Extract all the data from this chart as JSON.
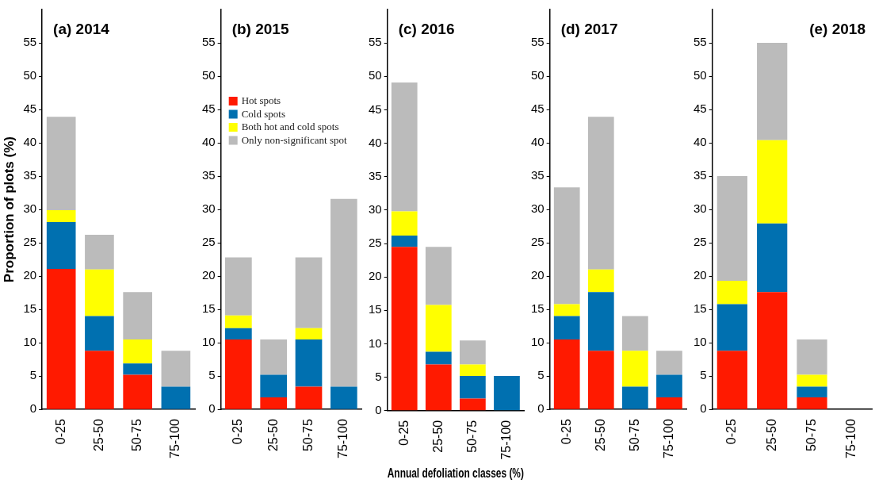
{
  "chart_data": [
    {
      "type": "bar",
      "title": "(a) 2014",
      "ylabel": "Proportion of plots (%)",
      "categories": [
        "0-25",
        "25-50",
        "50-75",
        "75-100"
      ],
      "stacked": true,
      "ylim": [
        0,
        60
      ],
      "yticks": [
        0,
        5,
        10,
        15,
        20,
        25,
        30,
        35,
        40,
        45,
        50,
        55
      ],
      "series": [
        {
          "color": "#ff1a00",
          "values": [
            21.1,
            8.8,
            5.2,
            0
          ]
        },
        {
          "color": "#0070b0",
          "values": [
            7.0,
            5.2,
            1.7,
            3.4
          ]
        },
        {
          "color": "#ffff00",
          "values": [
            1.8,
            7.0,
            3.6,
            0
          ]
        },
        {
          "color": "#bbbbbb",
          "values": [
            14.0,
            5.2,
            7.1,
            5.4
          ]
        }
      ]
    },
    {
      "type": "bar",
      "title": "(b) 2015",
      "categories": [
        "0-25",
        "25-50",
        "50-75",
        "75-100"
      ],
      "stacked": true,
      "ylim": [
        0,
        60
      ],
      "yticks": [
        0,
        5,
        10,
        15,
        20,
        25,
        30,
        35,
        40,
        45,
        50,
        55
      ],
      "legend": "top left",
      "series": [
        {
          "name": "Hot spots",
          "color": "#ff1a00",
          "values": [
            10.5,
            1.8,
            3.4,
            0
          ]
        },
        {
          "name": "Cold spots",
          "color": "#0070b0",
          "values": [
            1.7,
            3.4,
            7.1,
            3.4
          ]
        },
        {
          "name": "Both hot and cold spots",
          "color": "#ffff00",
          "values": [
            1.9,
            0,
            1.7,
            0
          ]
        },
        {
          "name": "Only non-significant spot",
          "color": "#bbbbbb",
          "values": [
            8.7,
            5.3,
            10.6,
            28.2
          ]
        }
      ]
    },
    {
      "type": "bar",
      "title": "(c) 2016",
      "xlabel": "Annual defoliation classes (%)",
      "categories": [
        "0-25",
        "25-50",
        "50-75",
        "75-100"
      ],
      "stacked": true,
      "ylim": [
        0,
        60
      ],
      "yticks": [
        0,
        5,
        10,
        15,
        20,
        25,
        30,
        35,
        40,
        45,
        50,
        55
      ],
      "series": [
        {
          "color": "#ff1a00",
          "values": [
            24.5,
            6.9,
            1.8,
            0
          ]
        },
        {
          "color": "#0070b0",
          "values": [
            1.7,
            1.9,
            3.4,
            5.2
          ]
        },
        {
          "color": "#ffff00",
          "values": [
            3.6,
            7.0,
            1.7,
            0
          ]
        },
        {
          "color": "#bbbbbb",
          "values": [
            19.3,
            8.7,
            3.6,
            0
          ]
        }
      ]
    },
    {
      "type": "bar",
      "title": "(d) 2017",
      "categories": [
        "0-25",
        "25-50",
        "50-75",
        "75-100"
      ],
      "stacked": true,
      "ylim": [
        0,
        60
      ],
      "yticks": [
        0,
        5,
        10,
        15,
        20,
        25,
        30,
        35,
        40,
        45,
        50,
        55
      ],
      "series": [
        {
          "color": "#ff1a00",
          "values": [
            10.5,
            8.8,
            0,
            1.8
          ]
        },
        {
          "color": "#0070b0",
          "values": [
            3.5,
            8.8,
            3.4,
            3.4
          ]
        },
        {
          "color": "#ffff00",
          "values": [
            1.8,
            3.4,
            5.4,
            0
          ]
        },
        {
          "color": "#bbbbbb",
          "values": [
            17.5,
            22.9,
            5.2,
            3.6
          ]
        }
      ]
    },
    {
      "type": "bar",
      "title": "(e) 2018",
      "categories": [
        "0-25",
        "25-50",
        "50-75",
        "75-100"
      ],
      "stacked": true,
      "ylim": [
        0,
        60
      ],
      "yticks": [
        0,
        5,
        10,
        15,
        20,
        25,
        30,
        35,
        40,
        45,
        50,
        55
      ],
      "series": [
        {
          "color": "#ff1a00",
          "values": [
            8.8,
            17.6,
            1.8,
            0
          ]
        },
        {
          "color": "#0070b0",
          "values": [
            7.0,
            10.3,
            1.6,
            0
          ]
        },
        {
          "color": "#ffff00",
          "values": [
            3.5,
            12.5,
            1.8,
            0
          ]
        },
        {
          "color": "#bbbbbb",
          "values": [
            15.7,
            14.6,
            5.3,
            0
          ]
        }
      ]
    }
  ]
}
